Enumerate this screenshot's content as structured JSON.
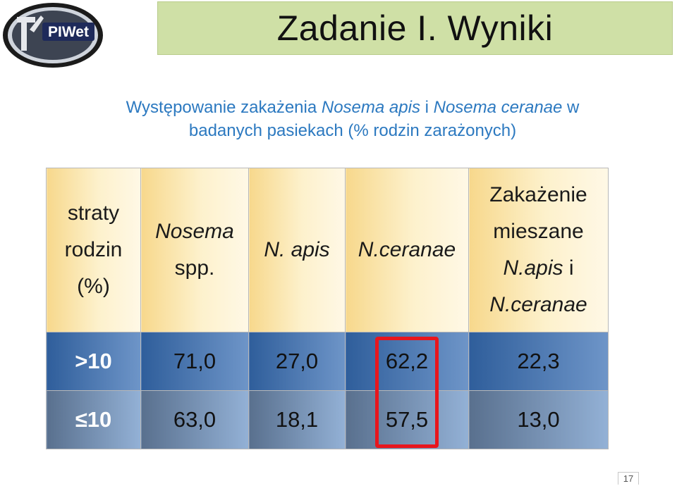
{
  "logo": {
    "text": "PIWet"
  },
  "title": "Zadanie I. Wyniki",
  "subtitle": {
    "part1": "Występowanie zakażenia ",
    "species1": "Nosema apis",
    "part2": " i ",
    "species2": "Nosema ceranae",
    "part3": " w",
    "line2": "badanych  pasiekach (% rodzin zarażonych)"
  },
  "table": {
    "headers": {
      "col0": [
        "straty",
        "rodzin",
        "(%)"
      ],
      "col1": [
        "Nosema",
        "spp."
      ],
      "col2": "N. apis",
      "col3": "N.ceranae",
      "col4_plain": [
        "Zakażenie",
        "mieszane"
      ],
      "col4_it1": "N.apis",
      "col4_plain2": " i",
      "col4_it2": "N.ceranae"
    },
    "rows": [
      {
        "label": ">10",
        "values": [
          "71,0",
          "27,0",
          "62,2",
          "22,3"
        ]
      },
      {
        "label": "≤10",
        "values": [
          "63,0",
          "18,1",
          "57,5",
          "13,0"
        ]
      }
    ]
  },
  "highlight_color": "#e8161d",
  "page_number": "17"
}
